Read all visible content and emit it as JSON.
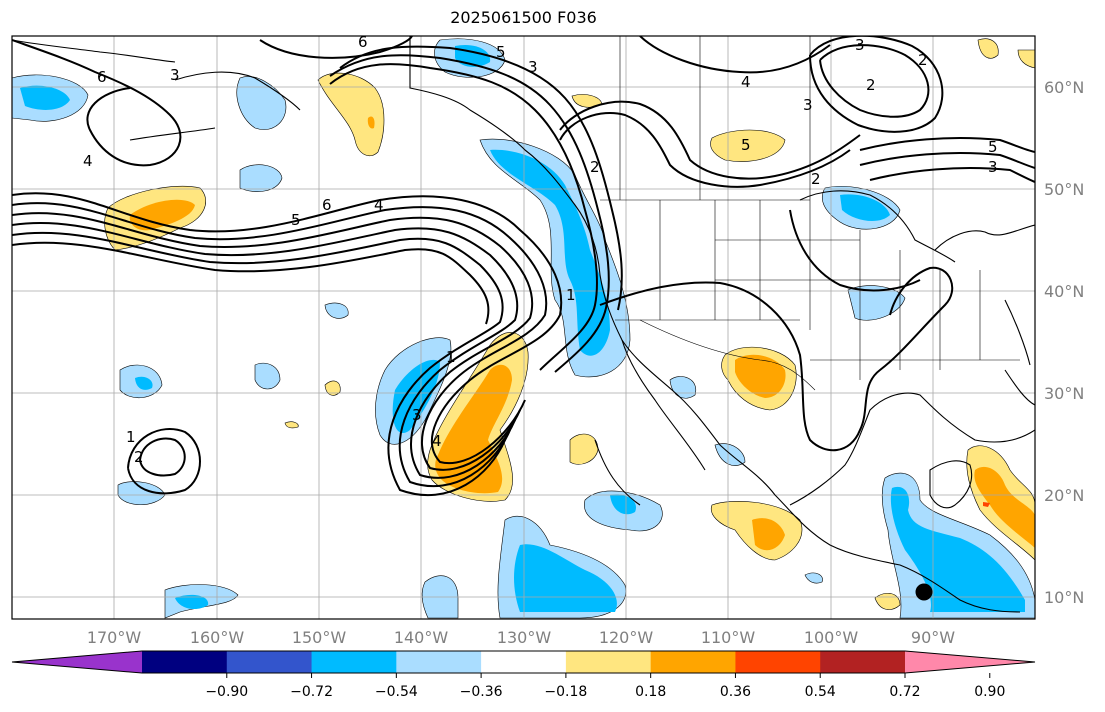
{
  "title": "2025061500 F036",
  "map": {
    "lon_labels": [
      "170°W",
      "160°W",
      "150°W",
      "140°W",
      "130°W",
      "120°W",
      "110°W",
      "100°W",
      "90°W"
    ],
    "lat_labels": [
      "60°N",
      "50°N",
      "40°N",
      "30°N",
      "20°N",
      "10°N"
    ],
    "contour_labels": [
      "6",
      "3",
      "4",
      "5",
      "6",
      "4",
      "5",
      "6",
      "3",
      "5",
      "2",
      "4",
      "3",
      "2",
      "5",
      "3",
      "3",
      "2",
      "1",
      "1",
      "3",
      "4",
      "2",
      "1",
      "2"
    ],
    "marker": "filled-circle"
  },
  "colorbar": {
    "ticks": [
      "−0.90",
      "−0.72",
      "−0.54",
      "−0.36",
      "−0.18",
      "0.18",
      "0.36",
      "0.54",
      "0.72",
      "0.90"
    ],
    "colors": [
      "#9933cc",
      "#000080",
      "#3355cc",
      "#00bbff",
      "#aaddff",
      "#ffffff",
      "#ffe680",
      "#ffa500",
      "#ff4400",
      "#b22222",
      "#ff88aa"
    ]
  }
}
